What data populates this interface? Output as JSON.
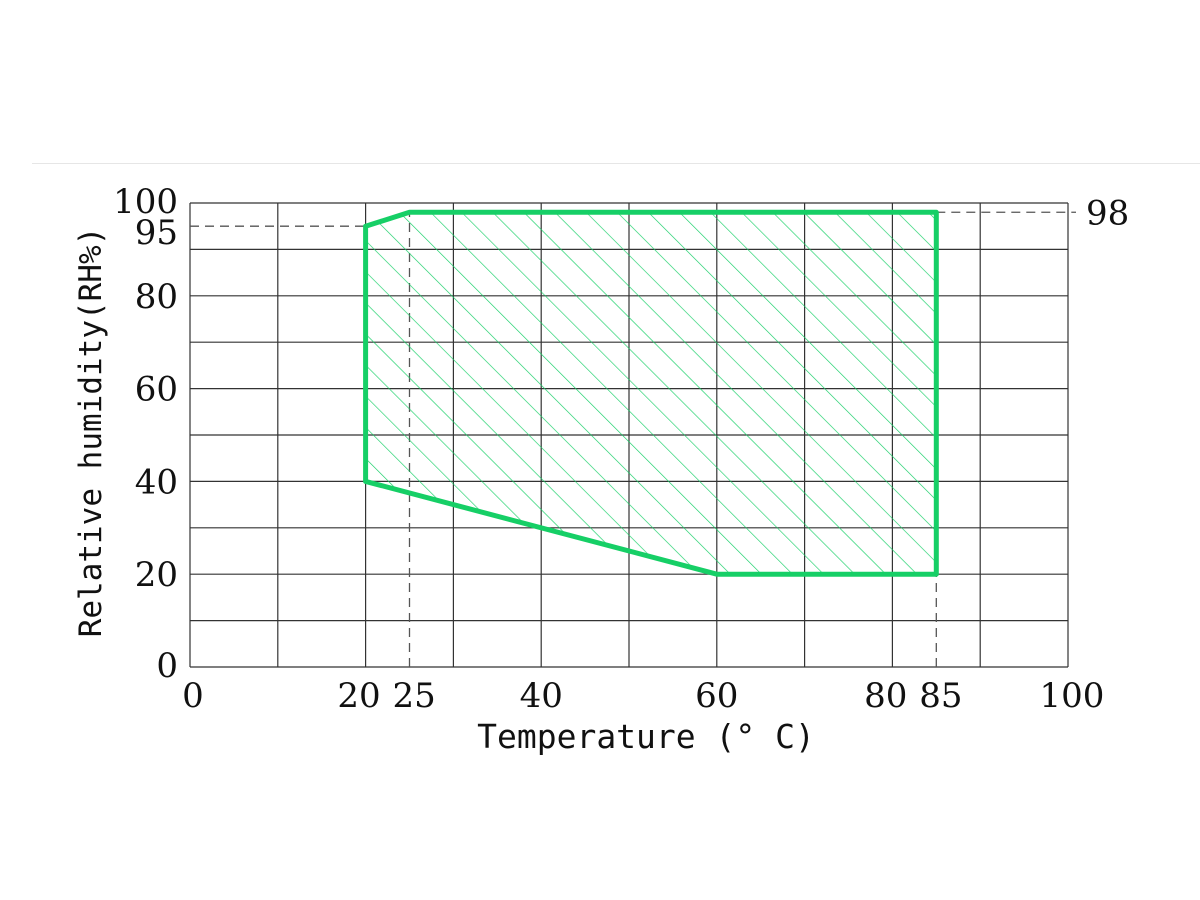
{
  "chart_data": {
    "type": "area",
    "xlabel": "Temperature (° C)",
    "ylabel": "Relative humidity(RH%)",
    "xlim": [
      0,
      100
    ],
    "ylim": [
      0,
      100
    ],
    "grid": true,
    "x_grid": [
      0,
      10,
      20,
      30,
      40,
      50,
      60,
      70,
      80,
      90,
      100
    ],
    "y_grid": [
      0,
      10,
      20,
      30,
      40,
      50,
      60,
      70,
      80,
      90,
      100
    ],
    "x_ticks": [
      0,
      20,
      25,
      40,
      60,
      80,
      85,
      100
    ],
    "y_ticks": [
      0,
      20,
      40,
      60,
      80,
      95,
      100
    ],
    "right_labels": [
      98
    ],
    "series": [
      {
        "color": "#16cf66",
        "hatched": true,
        "x": [
          20,
          20,
          25,
          85,
          85,
          60,
          20
        ],
        "y": [
          40,
          95,
          98,
          98,
          20,
          20,
          40
        ]
      }
    ],
    "reference_lines": [
      {
        "orientation": "horizontal",
        "value": 95,
        "from": 0,
        "to": 20
      },
      {
        "orientation": "horizontal",
        "value": 98,
        "from": 85,
        "to": 100
      },
      {
        "orientation": "vertical",
        "value": 25,
        "from": 0,
        "to": 98
      },
      {
        "orientation": "vertical",
        "value": 85,
        "from": 0,
        "to": 20
      }
    ]
  }
}
